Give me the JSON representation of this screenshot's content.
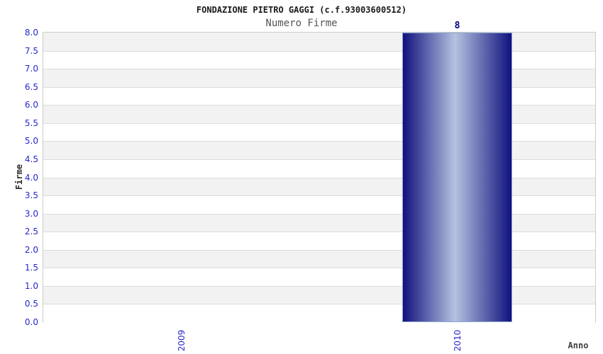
{
  "chart_data": {
    "type": "bar",
    "title": "FONDAZIONE PIETRO GAGGI (c.f.93003600512)",
    "subtitle": "Numero Firme",
    "xlabel": "Anno",
    "ylabel": "Firme",
    "categories": [
      "2009",
      "2010"
    ],
    "values": [
      0,
      8
    ],
    "bar_value_labels": [
      "",
      "8"
    ],
    "ylim": [
      0,
      8
    ],
    "ytick_step": 0.5,
    "yticks": [
      "0.0",
      "0.5",
      "1.0",
      "1.5",
      "2.0",
      "2.5",
      "3.0",
      "3.5",
      "4.0",
      "4.5",
      "5.0",
      "5.5",
      "6.0",
      "6.5",
      "7.0",
      "7.5",
      "8.0"
    ],
    "grid": "alternating horizontal bands, gray topmost, gridline each 0.5",
    "legend": "none",
    "bar_width_fraction": 0.4,
    "colors": {
      "bar_dark": "#11117e",
      "bar_light": "#b5c2e0",
      "bar_border": "#8aa9d0",
      "tick_label": "#2626cc",
      "value_label": "#000080",
      "title": "#1a1a1a",
      "subtitle": "#555555",
      "axis_title": "#404040",
      "band_gray": "#f2f2f2",
      "band_white": "#ffffff",
      "gridline": "#dcdcdc",
      "plot_border": "#cccccc",
      "background": "#ffffff"
    }
  }
}
